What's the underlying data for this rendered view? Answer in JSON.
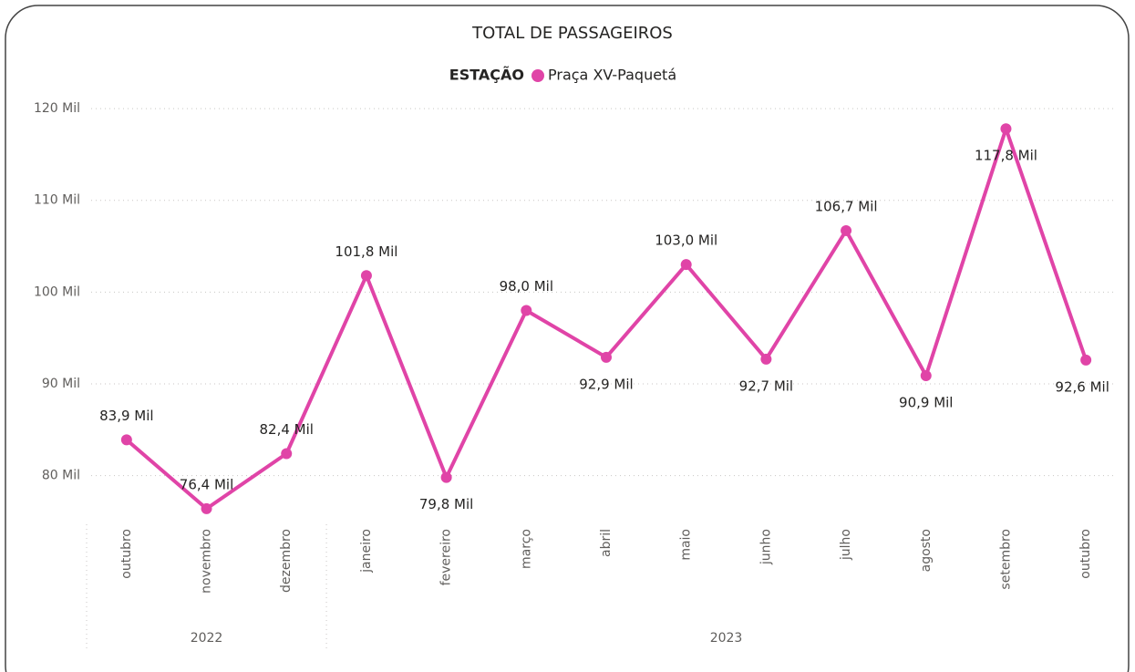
{
  "chart_data": {
    "type": "line",
    "title": "TOTAL DE PASSAGEIROS",
    "legend_title": "ESTAÇÃO",
    "categories": [
      "outubro",
      "novembro",
      "dezembro",
      "janeiro",
      "fevereiro",
      "março",
      "abril",
      "maio",
      "junho",
      "julho",
      "agosto",
      "setembro",
      "outubro"
    ],
    "category_groups": [
      {
        "label": "2022",
        "span": 3
      },
      {
        "label": "2023",
        "span": 10
      }
    ],
    "series": [
      {
        "name": "Praça XV-Paquetá",
        "color": "#e044a7",
        "values": [
          83900,
          76400,
          82400,
          101800,
          79800,
          98000,
          92900,
          103000,
          92700,
          106700,
          90900,
          117800,
          92600
        ],
        "value_labels": [
          "83,9 Mil",
          "76,4 Mil",
          "82,4 Mil",
          "101,8 Mil",
          "79,8 Mil",
          "98,0 Mil",
          "92,9 Mil",
          "103,0 Mil",
          "92,7 Mil",
          "106,7 Mil",
          "90,9 Mil",
          "117,8 Mil",
          "92,6 Mil"
        ]
      }
    ],
    "ylim": [
      74700,
      121400
    ],
    "yticks": [
      {
        "value": 80000,
        "label": "80 Mil"
      },
      {
        "value": 90000,
        "label": "90 Mil"
      },
      {
        "value": 100000,
        "label": "100 Mil"
      },
      {
        "value": 110000,
        "label": "110 Mil"
      },
      {
        "value": 120000,
        "label": "120 Mil"
      }
    ],
    "grid": true
  }
}
